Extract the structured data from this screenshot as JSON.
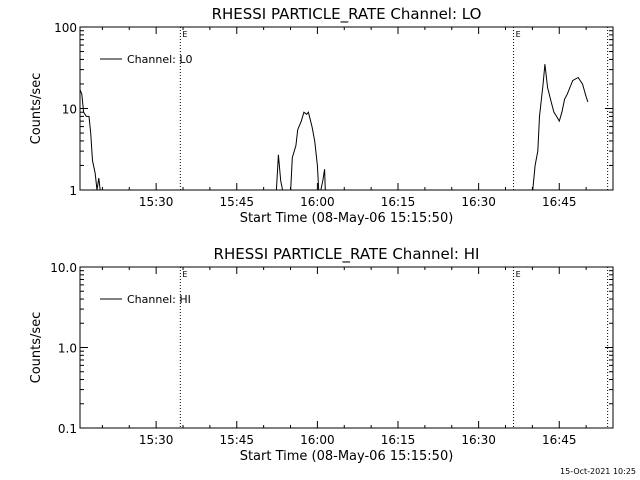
{
  "footer_timestamp": "15-Oct-2021 10:25",
  "chart_data": [
    {
      "type": "line",
      "title": "RHESSI PARTICLE_RATE Channel: LO",
      "xlabel": "Start Time (08-May-06 15:15:50)",
      "ylabel": "Counts/sec",
      "y_scale": "log",
      "ylim": [
        1,
        100
      ],
      "y_ticks": [
        1,
        10,
        100
      ],
      "y_tick_labels": [
        "1",
        "10",
        "100"
      ],
      "xlim": [
        "15:15:50",
        "16:55:00"
      ],
      "x_ticks": [
        "15:30",
        "15:45",
        "16:00",
        "16:15",
        "16:30",
        "16:45"
      ],
      "x_tick_labels": [
        "15:30",
        "15:45",
        "16:00",
        "16:15",
        "16:30",
        "16:45"
      ],
      "vlines": [
        {
          "x": "15:34:30",
          "label": "E"
        },
        {
          "x": "16:36:30",
          "label": "E"
        },
        {
          "x": "16:54:00",
          "label": ""
        }
      ],
      "legend": "top-left",
      "series": [
        {
          "name": "Channel: L0",
          "points": [
            [
              "15:15:50",
              17
            ],
            [
              "15:16:10",
              15
            ],
            [
              "15:16:30",
              9
            ],
            [
              "15:17:00",
              8
            ],
            [
              "15:17:30",
              8
            ],
            [
              "15:17:50",
              5
            ],
            [
              "15:18:10",
              2.3
            ],
            [
              "15:18:40",
              1.6
            ],
            [
              "15:19:00",
              1
            ],
            [
              "15:19:20",
              1.4
            ],
            [
              "15:19:40",
              0.9
            ],
            [
              "15:52:20",
              0.9
            ],
            [
              "15:52:45",
              2.7
            ],
            [
              "15:53:10",
              1.3
            ],
            [
              "15:53:40",
              0.9
            ],
            [
              "15:55:00",
              0.9
            ],
            [
              "15:55:20",
              2.5
            ],
            [
              "15:56:00",
              3.5
            ],
            [
              "15:56:20",
              5.5
            ],
            [
              "15:57:00",
              7
            ],
            [
              "15:57:30",
              9
            ],
            [
              "15:58:00",
              8.5
            ],
            [
              "15:58:20",
              9
            ],
            [
              "15:59:00",
              6
            ],
            [
              "15:59:30",
              4
            ],
            [
              "16:00:00",
              2
            ],
            [
              "16:00:15",
              1
            ],
            [
              "16:00:30",
              0.9
            ],
            [
              "16:01:00",
              1.3
            ],
            [
              "16:01:20",
              1.8
            ],
            [
              "16:01:30",
              0.9
            ],
            [
              "16:40:00",
              0.9
            ],
            [
              "16:40:30",
              2
            ],
            [
              "16:41:00",
              3
            ],
            [
              "16:41:20",
              8
            ],
            [
              "16:42:00",
              20
            ],
            [
              "16:42:20",
              35
            ],
            [
              "16:42:50",
              18
            ],
            [
              "16:43:30",
              12
            ],
            [
              "16:44:00",
              9
            ],
            [
              "16:44:30",
              8
            ],
            [
              "16:45:00",
              7
            ],
            [
              "16:45:30",
              9
            ],
            [
              "16:46:00",
              13
            ],
            [
              "16:46:30",
              15
            ],
            [
              "16:47:30",
              22
            ],
            [
              "16:48:30",
              24
            ],
            [
              "16:49:20",
              20
            ],
            [
              "16:50:00",
              14
            ],
            [
              "16:50:20",
              12
            ]
          ]
        }
      ]
    },
    {
      "type": "line",
      "title": "RHESSI PARTICLE_RATE Channel: HI",
      "xlabel": "Start Time (08-May-06 15:15:50)",
      "ylabel": "Counts/sec",
      "y_scale": "log",
      "ylim": [
        0.1,
        10
      ],
      "y_ticks": [
        0.1,
        1,
        10
      ],
      "y_tick_labels": [
        "0.1",
        "1.0",
        "10.0"
      ],
      "xlim": [
        "15:15:50",
        "16:55:00"
      ],
      "x_ticks": [
        "15:30",
        "15:45",
        "16:00",
        "16:15",
        "16:30",
        "16:45"
      ],
      "x_tick_labels": [
        "15:30",
        "15:45",
        "16:00",
        "16:15",
        "16:30",
        "16:45"
      ],
      "vlines": [
        {
          "x": "15:34:30",
          "label": "E"
        },
        {
          "x": "16:36:30",
          "label": "E"
        },
        {
          "x": "16:54:00",
          "label": ""
        }
      ],
      "legend": "top-left",
      "series": [
        {
          "name": "Channel: HI",
          "points": []
        }
      ]
    }
  ]
}
